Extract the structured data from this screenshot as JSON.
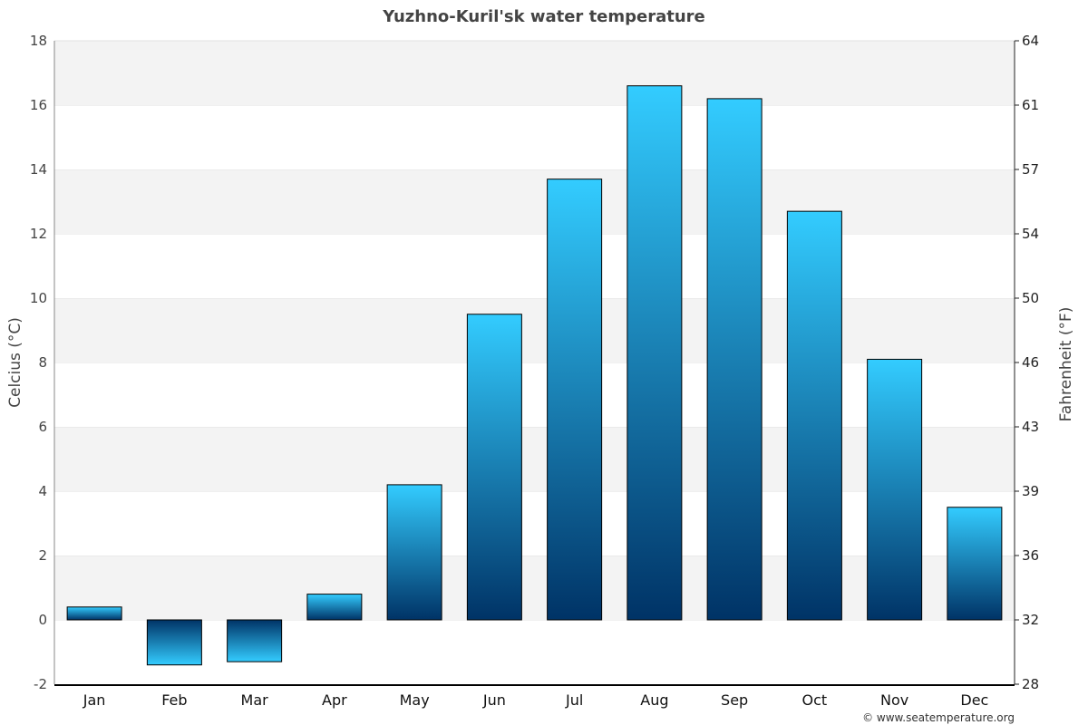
{
  "chart_data": {
    "type": "bar",
    "title": "Yuzhno-Kuril'sk water temperature",
    "ylabel": "Celcius (°C)",
    "ylabel_right": "Fahrenheit (°F)",
    "categories": [
      "Jan",
      "Feb",
      "Mar",
      "Apr",
      "May",
      "Jun",
      "Jul",
      "Aug",
      "Sep",
      "Oct",
      "Nov",
      "Dec"
    ],
    "values": [
      0.4,
      -1.4,
      -1.3,
      0.8,
      4.2,
      9.5,
      13.7,
      16.6,
      16.2,
      12.7,
      8.1,
      3.5
    ],
    "ylim": [
      -2,
      18
    ],
    "yticks": [
      -2,
      0,
      2,
      4,
      6,
      8,
      10,
      12,
      14,
      16,
      18
    ],
    "yticks_right": [
      "28",
      "32",
      "36",
      "39",
      "43",
      "46",
      "50",
      "54",
      "57",
      "61",
      "64"
    ],
    "grid": "alternating horizontal bands",
    "legend": "none",
    "colors": {
      "bar_light": "#33ccff",
      "bar_dark": "#003366",
      "band": "#f3f3f3"
    }
  },
  "credit": "© www.seatemperature.org"
}
